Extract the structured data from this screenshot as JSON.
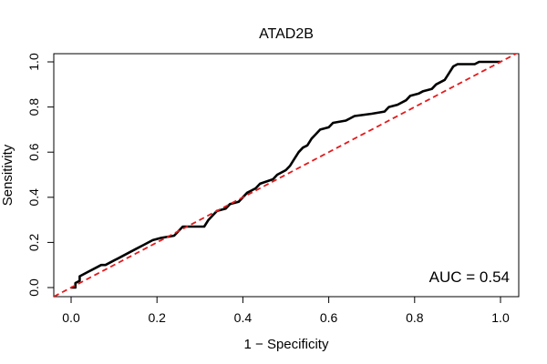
{
  "chart_data": {
    "type": "line",
    "title": "ATAD2B",
    "xlabel": "1 − Specificity",
    "ylabel": "Sensitivity",
    "xlim": [
      0.0,
      1.0
    ],
    "ylim": [
      0.0,
      1.0
    ],
    "x_ticks": [
      "0.0",
      "0.2",
      "0.4",
      "0.6",
      "0.8",
      "1.0"
    ],
    "y_ticks": [
      "0.0",
      "0.2",
      "0.4",
      "0.6",
      "0.8",
      "1.0"
    ],
    "grid": false,
    "annotation": "AUC = 0.54",
    "series": [
      {
        "color": "#000000",
        "style": "solid",
        "x": [
          0.0,
          0.01,
          0.01,
          0.02,
          0.02,
          0.03,
          0.04,
          0.05,
          0.06,
          0.07,
          0.08,
          0.1,
          0.11,
          0.12,
          0.14,
          0.15,
          0.17,
          0.18,
          0.19,
          0.21,
          0.24,
          0.25,
          0.26,
          0.27,
          0.31,
          0.32,
          0.33,
          0.34,
          0.36,
          0.37,
          0.39,
          0.4,
          0.41,
          0.42,
          0.43,
          0.44,
          0.47,
          0.48,
          0.5,
          0.51,
          0.52,
          0.53,
          0.54,
          0.55,
          0.56,
          0.57,
          0.58,
          0.6,
          0.61,
          0.64,
          0.66,
          0.7,
          0.73,
          0.74,
          0.76,
          0.78,
          0.79,
          0.81,
          0.82,
          0.84,
          0.85,
          0.87,
          0.88,
          0.89,
          0.9,
          0.91,
          0.94,
          0.95,
          1.0
        ],
        "y": [
          0.0,
          0.0,
          0.02,
          0.03,
          0.05,
          0.06,
          0.07,
          0.08,
          0.09,
          0.1,
          0.1,
          0.12,
          0.13,
          0.14,
          0.16,
          0.17,
          0.19,
          0.2,
          0.21,
          0.22,
          0.23,
          0.25,
          0.27,
          0.27,
          0.27,
          0.3,
          0.32,
          0.34,
          0.35,
          0.37,
          0.38,
          0.4,
          0.42,
          0.43,
          0.44,
          0.46,
          0.48,
          0.5,
          0.52,
          0.54,
          0.57,
          0.6,
          0.62,
          0.63,
          0.66,
          0.68,
          0.7,
          0.71,
          0.73,
          0.74,
          0.76,
          0.77,
          0.78,
          0.8,
          0.81,
          0.83,
          0.85,
          0.86,
          0.87,
          0.88,
          0.9,
          0.92,
          0.95,
          0.98,
          0.99,
          0.99,
          0.99,
          1.0,
          1.0
        ]
      },
      {
        "color": "#e31a1c",
        "style": "dashed",
        "x": [
          -0.04,
          1.04
        ],
        "y": [
          -0.04,
          1.04
        ]
      }
    ]
  }
}
